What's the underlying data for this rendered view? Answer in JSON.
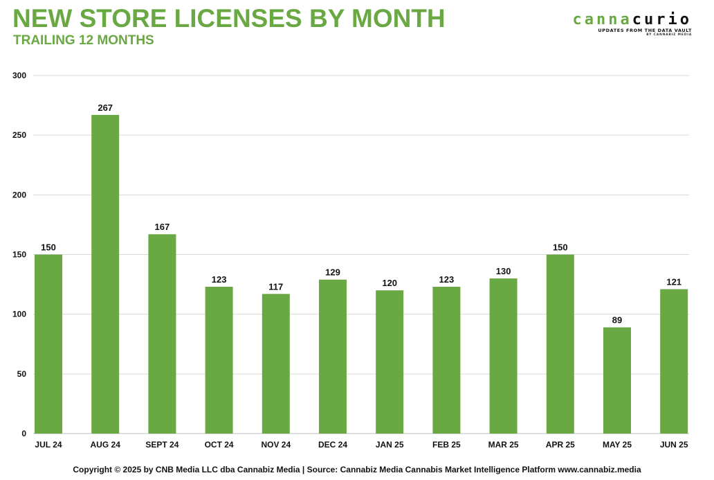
{
  "header": {
    "title": "NEW STORE LICENSES BY MONTH",
    "subtitle": "TRAILING 12 MONTHS"
  },
  "logo": {
    "word_part1": "canna",
    "word_part2": "curio",
    "tagline": "UPDATES FROM THE DATA VAULT",
    "byline": "BY CANNABIZ MEDIA"
  },
  "footer": {
    "text": "Copyright © 2025 by CNB Media LLC dba Cannabiz Media | Source: Cannabiz Media Cannabis Market Intelligence Platform www.cannabiz.media"
  },
  "colors": {
    "accent": "#6aa843",
    "bar": "#6aa843",
    "grid": "#d9d9d9"
  },
  "chart_data": {
    "type": "bar",
    "title": "NEW STORE LICENSES BY MONTH",
    "subtitle": "TRAILING 12 MONTHS",
    "xlabel": "",
    "ylabel": "",
    "categories": [
      "JUL 24",
      "AUG 24",
      "SEPT 24",
      "OCT 24",
      "NOV 24",
      "DEC 24",
      "JAN 25",
      "FEB 25",
      "MAR 25",
      "APR 25",
      "MAY 25",
      "JUN 25"
    ],
    "values": [
      150,
      267,
      167,
      123,
      117,
      129,
      120,
      123,
      130,
      150,
      89,
      121
    ],
    "ylim": [
      0,
      300
    ],
    "yticks": [
      0,
      50,
      100,
      150,
      200,
      250,
      300
    ],
    "grid": true,
    "data_labels": true,
    "legend": "none"
  }
}
